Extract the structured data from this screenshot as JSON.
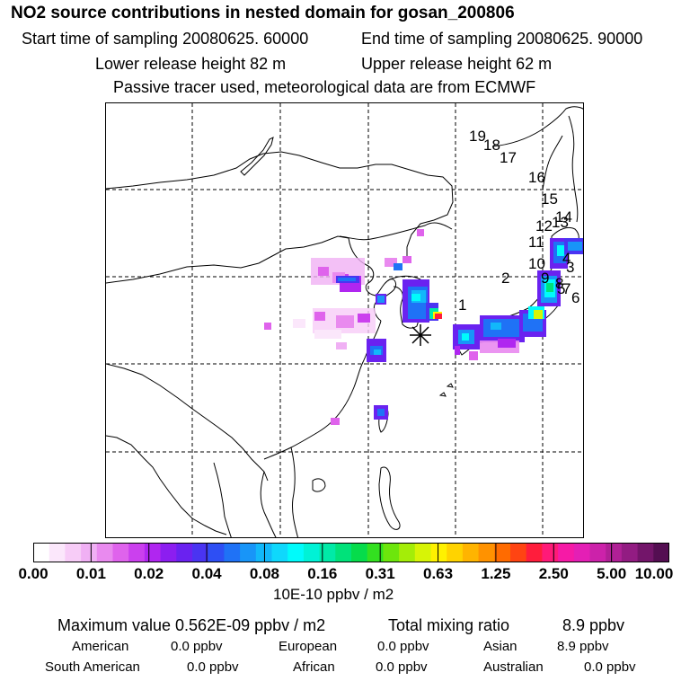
{
  "header": {
    "title": "NO2 source contributions in nested domain for gosan_200806",
    "start_time": "Start time of sampling 20080625. 60000",
    "end_time": "End time of sampling 20080625. 90000",
    "lower_height": "Lower release height   82 m",
    "upper_height": "Upper release height   62 m",
    "tracer_note": "Passive tracer used, meteorological data are from ECMWF"
  },
  "map": {
    "labels": [
      "1",
      "2",
      "3",
      "4",
      "5",
      "6",
      "7",
      "8",
      "9",
      "10",
      "11",
      "12",
      "13",
      "14",
      "15",
      "16",
      "17",
      "18",
      "19"
    ],
    "receptor_marker": "asterisk",
    "colors": {
      "coast": "#000000",
      "grid": "#000000"
    }
  },
  "colorbar": {
    "ticks": [
      "0.00",
      "0.01",
      "0.02",
      "0.04",
      "0.08",
      "0.16",
      "0.31",
      "0.63",
      "1.25",
      "2.50",
      "5.00",
      "10.00"
    ],
    "unit": "10E-10 ppbv / m2",
    "colors": [
      "#ffffff",
      "#fbe7fb",
      "#f7ccf7",
      "#f0b0f4",
      "#e98aef",
      "#df63ec",
      "#cb40ee",
      "#b026f0",
      "#8c1ef0",
      "#6a22f0",
      "#4a34f2",
      "#2e4ff4",
      "#1f72f6",
      "#1895f8",
      "#12b8fa",
      "#0fd8fc",
      "#00fbfb",
      "#00f2d6",
      "#00eaa7",
      "#00e27a",
      "#06dc4b",
      "#33e020",
      "#6de60c",
      "#a4ed08",
      "#d7f406",
      "#fff100",
      "#ffd300",
      "#ffb400",
      "#ff9200",
      "#ff6b00",
      "#ff4412",
      "#ff1d3c",
      "#ff1a78",
      "#f61aa6",
      "#e41fb5",
      "#cc22aa",
      "#b02096",
      "#921c82",
      "#73156a",
      "#540e52"
    ]
  },
  "summary": {
    "max_value": "Maximum value  0.562E-09 ppbv / m2",
    "total_mixing_label": "Total mixing ratio",
    "total_mixing_value": "8.9 ppbv",
    "regions": [
      {
        "name": "American",
        "value": "0.0 ppbv"
      },
      {
        "name": "European",
        "value": "0.0 ppbv"
      },
      {
        "name": "Asian",
        "value": "8.9 ppbv"
      },
      {
        "name": "South American",
        "value": "0.0 ppbv"
      },
      {
        "name": "African",
        "value": "0.0 ppbv"
      },
      {
        "name": "Australian",
        "value": "0.0 ppbv"
      }
    ]
  }
}
